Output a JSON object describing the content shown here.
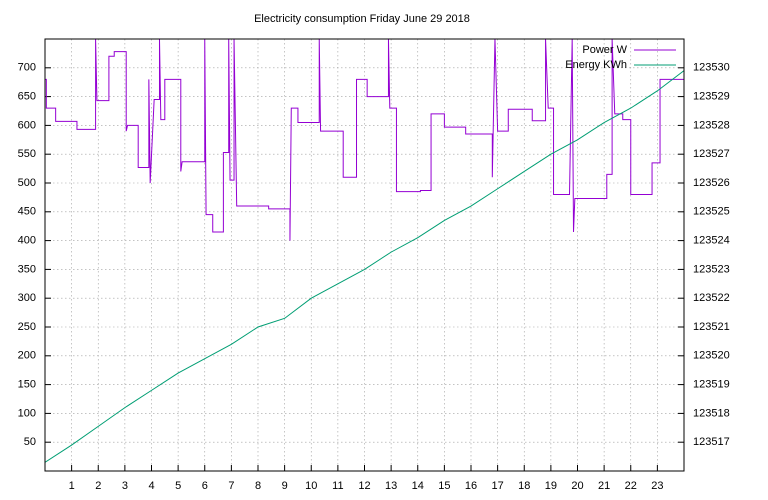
{
  "chart_data": {
    "type": "line",
    "title": "Electricity consumption Friday June 29 2018",
    "xlim": [
      0,
      24
    ],
    "xticks": [
      1,
      2,
      3,
      4,
      5,
      6,
      7,
      8,
      9,
      10,
      11,
      12,
      13,
      14,
      15,
      16,
      17,
      18,
      19,
      20,
      21,
      22,
      23
    ],
    "ylim": [
      0,
      750
    ],
    "yticks": [
      50,
      100,
      150,
      200,
      250,
      300,
      350,
      400,
      450,
      500,
      550,
      600,
      650,
      700
    ],
    "y2lim": [
      123516,
      123531
    ],
    "y2ticks": [
      123517,
      123518,
      123519,
      123520,
      123521,
      123522,
      123523,
      123524,
      123525,
      123526,
      123527,
      123528,
      123529,
      123530
    ],
    "grid": true,
    "legend": "top-right",
    "series": [
      {
        "name": "Power W",
        "color": "#9400d3",
        "x": [
          0,
          0.05,
          0.05,
          0.4,
          0.4,
          1.2,
          1.2,
          1.9,
          1.9,
          1.95,
          2.4,
          2.4,
          2.6,
          2.6,
          3.05,
          3.05,
          3.1,
          3.5,
          3.5,
          3.9,
          3.9,
          3.95,
          4.1,
          4.3,
          4.3,
          4.35,
          4.5,
          4.5,
          5.1,
          5.1,
          5.15,
          6.0,
          6.0,
          6.05,
          6.3,
          6.3,
          6.7,
          6.7,
          6.9,
          6.9,
          6.95,
          7.1,
          7.1,
          7.2,
          8.4,
          8.4,
          9.2,
          9.2,
          9.25,
          9.5,
          9.5,
          10.3,
          10.3,
          10.35,
          11.2,
          11.2,
          11.7,
          11.7,
          12.1,
          12.1,
          12.9,
          12.9,
          12.95,
          13.2,
          13.2,
          14.1,
          14.1,
          14.5,
          14.5,
          15.0,
          15.0,
          15.8,
          15.8,
          16.8,
          16.8,
          16.9,
          17.0,
          17.4,
          17.4,
          18.3,
          18.3,
          18.8,
          18.8,
          18.9,
          19.1,
          19.1,
          19.7,
          19.8,
          19.85,
          19.9,
          21.1,
          21.1,
          21.3,
          21.3,
          21.4,
          21.7,
          21.7,
          22.0,
          22.0,
          22.8,
          22.8,
          23.1,
          23.1,
          24
        ],
        "values": [
          680,
          680,
          630,
          630,
          607,
          607,
          593,
          593,
          750,
          643,
          643,
          720,
          720,
          728,
          728,
          590,
          600,
          600,
          527,
          527,
          680,
          500,
          645,
          645,
          750,
          610,
          610,
          680,
          680,
          520,
          537,
          537,
          750,
          445,
          445,
          415,
          415,
          553,
          553,
          750,
          505,
          505,
          750,
          460,
          460,
          455,
          455,
          400,
          630,
          630,
          605,
          605,
          750,
          590,
          590,
          510,
          510,
          680,
          680,
          650,
          650,
          750,
          630,
          630,
          485,
          485,
          487,
          487,
          620,
          620,
          597,
          597,
          585,
          585,
          510,
          750,
          590,
          590,
          628,
          628,
          608,
          608,
          750,
          630,
          630,
          480,
          480,
          750,
          415,
          473,
          473,
          515,
          515,
          750,
          620,
          620,
          610,
          610,
          480,
          480,
          535,
          535,
          680,
          680
        ]
      },
      {
        "name": "Energy KWh",
        "color": "#009e73",
        "axis": "y2",
        "x": [
          0,
          1,
          2,
          3,
          4,
          5,
          6,
          7,
          8,
          9,
          10,
          11,
          12,
          13,
          14,
          15,
          16,
          17,
          18,
          19,
          20,
          21,
          22,
          23,
          24
        ],
        "values": [
          123516.3,
          123516.9,
          123517.55,
          123518.2,
          123518.8,
          123519.4,
          123519.9,
          123520.4,
          123521.0,
          123521.3,
          123522.0,
          123522.5,
          123523.0,
          123523.6,
          123524.1,
          123524.7,
          123525.2,
          123525.8,
          123526.4,
          123527.0,
          123527.5,
          123528.1,
          123528.6,
          123529.2,
          123529.9
        ]
      }
    ]
  }
}
